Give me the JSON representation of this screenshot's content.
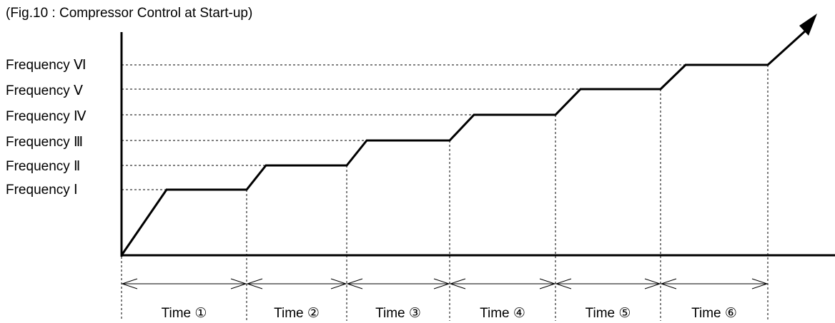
{
  "figure": {
    "title": "(Fig.10 : Compressor Control at Start-up)",
    "frequency_levels": [
      "Frequency Ⅰ",
      "Frequency Ⅱ",
      "Frequency Ⅲ",
      "Frequency Ⅳ",
      "Frequency Ⅴ",
      "Frequency Ⅵ"
    ],
    "time_intervals": [
      "Time ①",
      "Time ②",
      "Time ③",
      "Time ④",
      "Time ⑤",
      "Time ⑥"
    ]
  }
}
